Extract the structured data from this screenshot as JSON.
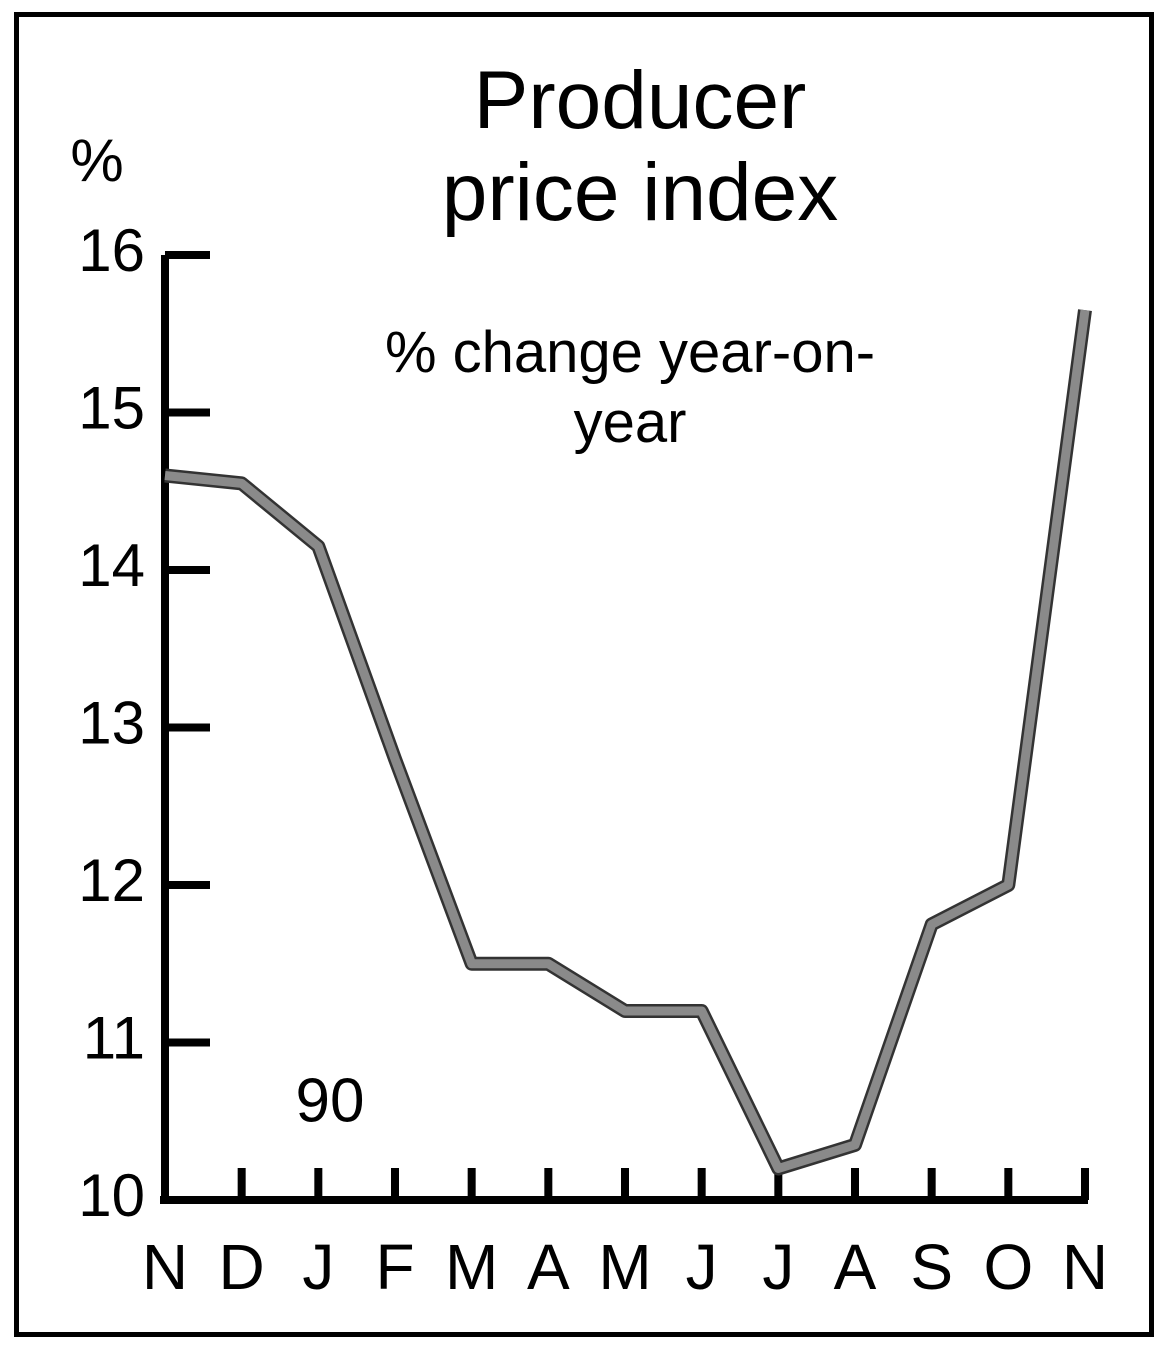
{
  "chart_data": {
    "type": "line",
    "title": "Producer price index",
    "subtitle": "% change year-on-year",
    "y_unit": "%",
    "annotation": "90",
    "categories": [
      "N",
      "D",
      "J",
      "F",
      "M",
      "A",
      "M",
      "J",
      "J",
      "A",
      "S",
      "O",
      "N"
    ],
    "values": [
      14.6,
      14.55,
      14.15,
      12.8,
      11.5,
      11.5,
      11.2,
      11.2,
      10.2,
      10.35,
      11.75,
      12.0,
      15.65
    ],
    "color": "#8a8a8a",
    "ylim": [
      10,
      16
    ],
    "yticks": [
      10,
      11,
      12,
      13,
      14,
      15,
      16
    ]
  }
}
